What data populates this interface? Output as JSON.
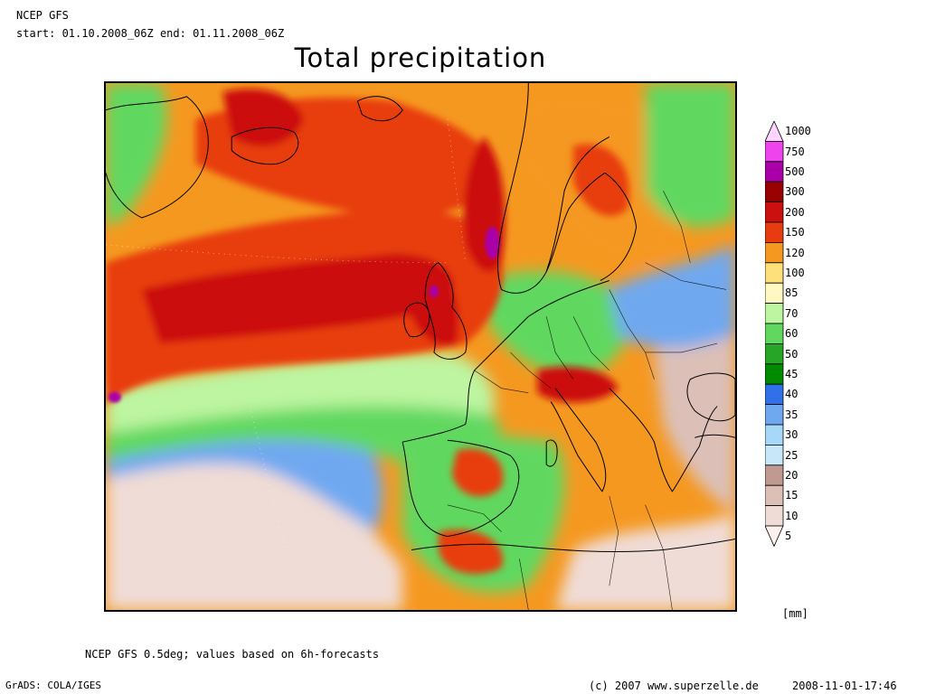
{
  "header": {
    "model": "NCEP GFS",
    "period": "start: 01.10.2008_06Z end: 01.11.2008_06Z",
    "title": "Total precipitation"
  },
  "legend": {
    "unit": "[mm]",
    "levels": [
      {
        "label": "1000",
        "color": "#ffd6ff"
      },
      {
        "label": "750",
        "color": "#ee44ee"
      },
      {
        "label": "500",
        "color": "#aa00aa"
      },
      {
        "label": "300",
        "color": "#990000"
      },
      {
        "label": "200",
        "color": "#cc1010"
      },
      {
        "label": "150",
        "color": "#e83c10"
      },
      {
        "label": "120",
        "color": "#f59820"
      },
      {
        "label": "100",
        "color": "#fde07a"
      },
      {
        "label": "85",
        "color": "#fff8c0"
      },
      {
        "label": "70",
        "color": "#bdf5a0"
      },
      {
        "label": "60",
        "color": "#60d860"
      },
      {
        "label": "50",
        "color": "#26a526"
      },
      {
        "label": "45",
        "color": "#008a00"
      },
      {
        "label": "40",
        "color": "#3070e8"
      },
      {
        "label": "35",
        "color": "#70a8f0"
      },
      {
        "label": "30",
        "color": "#a8d8f8"
      },
      {
        "label": "25",
        "color": "#c8e8fa"
      },
      {
        "label": "20",
        "color": "#c09a90"
      },
      {
        "label": "15",
        "color": "#dcc0b8"
      },
      {
        "label": "10",
        "color": "#f0dcd6"
      },
      {
        "label": "5",
        "color": "#fbf0ec"
      }
    ]
  },
  "footer": {
    "data_note": "NCEP GFS 0.5deg; values based on 6h-forecasts",
    "software": "GrADS: COLA/IGES",
    "copyright": "(c) 2007 www.superzelle.de",
    "timestamp": "2008-11-01-17:46"
  }
}
